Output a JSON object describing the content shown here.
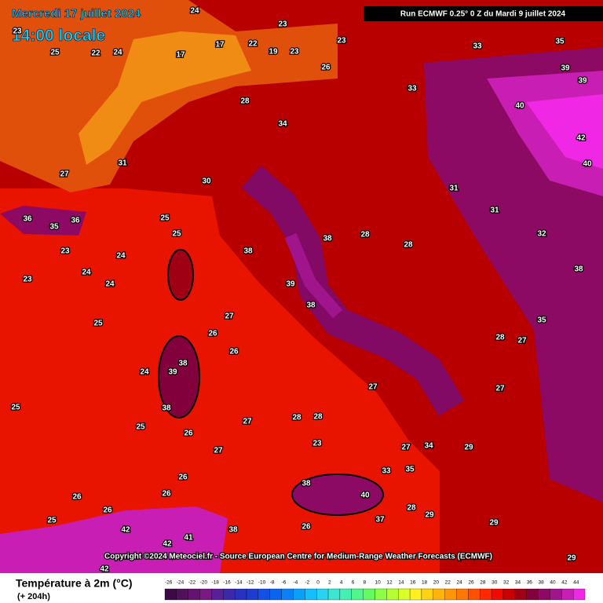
{
  "header": {
    "date": "Mercredi 17 juillet 2024",
    "time": "14:00 locale",
    "run": "Run ECMWF 0.25° 0 Z du Mardi 9 juillet 2024"
  },
  "copyright": "Copyright ©2024 Meteociel.fr - Source European Centre for Medium-Range Weather Forecasts (ECMWF)",
  "legend": {
    "title": "Température à 2m (°C)",
    "subtitle": "(+ 204h)",
    "ticks": [
      -26,
      -24,
      -22,
      -20,
      -18,
      -16,
      -14,
      -12,
      -10,
      -8,
      -6,
      -4,
      -2,
      0,
      2,
      4,
      6,
      8,
      10,
      12,
      14,
      16,
      18,
      20,
      22,
      24,
      26,
      28,
      30,
      32,
      34,
      36,
      38,
      40,
      42,
      44
    ],
    "colors": [
      "#3c0a46",
      "#50105a",
      "#64146e",
      "#781a82",
      "#5a1e96",
      "#3c28aa",
      "#2832be",
      "#1e3cd2",
      "#1450e6",
      "#0a64f0",
      "#0a82f5",
      "#0aa0fa",
      "#14beff",
      "#28d2f0",
      "#3ce6d2",
      "#46f0b4",
      "#50f58c",
      "#64fa64",
      "#8cff46",
      "#b4ff32",
      "#dcff28",
      "#fff01e",
      "#ffd214",
      "#ffb40a",
      "#ff960a",
      "#ff7805",
      "#ff5000",
      "#ff2800",
      "#f00a00",
      "#c80000",
      "#a00014",
      "#82003c",
      "#8c0a64",
      "#a0148c",
      "#c81eb4",
      "#f028e6"
    ]
  },
  "labels": [
    24,
    23,
    23,
    23,
    25,
    22,
    24,
    17,
    17,
    22,
    19,
    23,
    26,
    33,
    35,
    39,
    39,
    40,
    42,
    40,
    33,
    34,
    28,
    31,
    27,
    36,
    35,
    36,
    23,
    24,
    23,
    24,
    24,
    25,
    25,
    25,
    30,
    38,
    39,
    38,
    38,
    28,
    28,
    31,
    31,
    32,
    38,
    35,
    28,
    27,
    27,
    26,
    26,
    38,
    39,
    38,
    26,
    27,
    27,
    28,
    28,
    23,
    27,
    27,
    34,
    29,
    27,
    35,
    33,
    38,
    40,
    37,
    26,
    26,
    26,
    25,
    26,
    42,
    42,
    41,
    38,
    26,
    28,
    29,
    29,
    25,
    25,
    24,
    29,
    42
  ]
}
